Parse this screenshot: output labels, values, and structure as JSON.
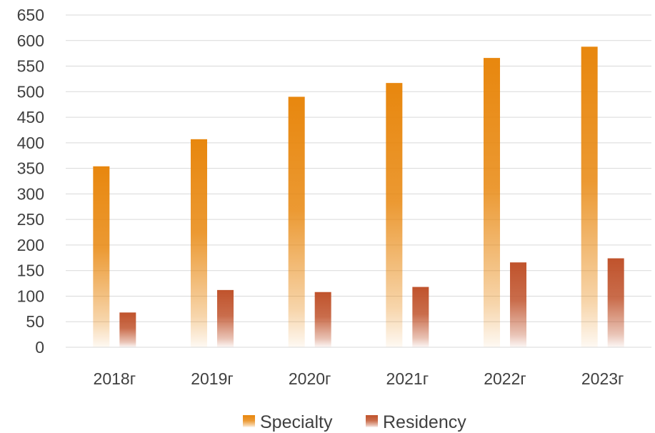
{
  "chart_data": {
    "type": "bar",
    "categories": [
      "2018г",
      "2019г",
      "2020г",
      "2021г",
      "2022г",
      "2023г"
    ],
    "series": [
      {
        "name": "Specialty",
        "values": [
          354,
          407,
          490,
          517,
          566,
          588
        ],
        "color": "#e8870e"
      },
      {
        "name": "Residency",
        "values": [
          68,
          112,
          108,
          118,
          166,
          174
        ],
        "color": "#c0532c"
      }
    ],
    "title": "",
    "xlabel": "",
    "ylabel": "",
    "ylim": [
      0,
      650
    ],
    "yticks": [
      0,
      50,
      100,
      150,
      200,
      250,
      300,
      350,
      400,
      450,
      500,
      550,
      600,
      650
    ],
    "grid": true,
    "legend_position": "bottom"
  }
}
